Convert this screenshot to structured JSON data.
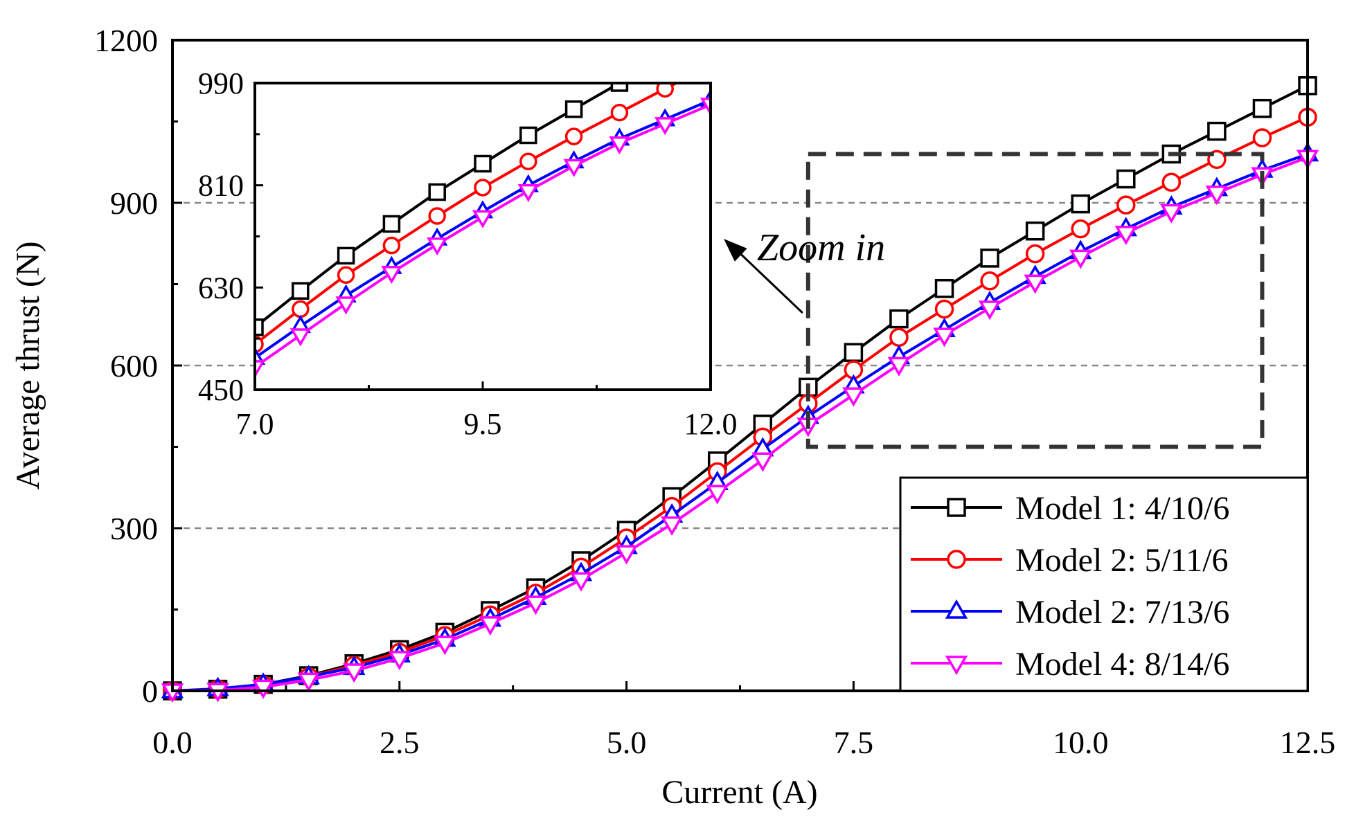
{
  "chart_data": {
    "type": "line",
    "xlabel": "Current (A)",
    "ylabel": "Average thrust (N)",
    "xlim": [
      0,
      12.5
    ],
    "ylim": [
      0,
      1200
    ],
    "xticks": [
      "0.0",
      "2.5",
      "5.0",
      "7.5",
      "10.0",
      "12.5"
    ],
    "yticks": [
      "0",
      "300",
      "600",
      "900",
      "1200"
    ],
    "x": [
      0,
      0.5,
      1,
      1.5,
      2,
      2.5,
      3,
      3.5,
      4,
      4.5,
      5,
      5.5,
      6,
      6.5,
      7,
      7.5,
      8,
      8.5,
      9,
      9.5,
      10,
      10.5,
      11,
      11.5,
      12,
      12.5
    ],
    "series": [
      {
        "name": "Model 1: 4/10/6",
        "color": "#000000",
        "marker": "square",
        "values": [
          0,
          3,
          12,
          28,
          50,
          76,
          108,
          148,
          190,
          240,
          296,
          358,
          424,
          492,
          560,
          624,
          686,
          742,
          798,
          848,
          898,
          944,
          990,
          1032,
          1074,
          1116
        ]
      },
      {
        "name": "Model 2: 5/11/6",
        "color": "#ff0000",
        "marker": "circle",
        "values": [
          0,
          3,
          11,
          26,
          47,
          71,
          102,
          140,
          180,
          228,
          282,
          340,
          404,
          468,
          530,
          592,
          652,
          704,
          756,
          806,
          852,
          896,
          938,
          980,
          1020,
          1058
        ]
      },
      {
        "name": "Model 2: 7/13/6",
        "color": "#0000ff",
        "marker": "triangle-up",
        "values": [
          0,
          4,
          12,
          26,
          43,
          66,
          95,
          132,
          172,
          216,
          266,
          324,
          384,
          446,
          506,
          562,
          616,
          666,
          716,
          764,
          810,
          852,
          892,
          926,
          960,
          990
        ]
      },
      {
        "name": "Model 4: 8/14/6",
        "color": "#ff00ff",
        "marker": "triangle-down",
        "values": [
          0,
          1,
          7,
          20,
          37,
          60,
          88,
          124,
          162,
          205,
          255,
          308,
          366,
          426,
          490,
          546,
          602,
          656,
          706,
          754,
          800,
          844,
          884,
          918,
          952,
          984
        ]
      }
    ],
    "grid": {
      "y_values": [
        300,
        600,
        900
      ],
      "style": "dashed"
    },
    "legend": {
      "placement": "bottom-right"
    },
    "zoom_box": {
      "x_range": [
        7,
        12
      ],
      "y_range": [
        450,
        990
      ],
      "label": "Zoom in"
    },
    "inset": {
      "xlim": [
        7,
        12
      ],
      "ylim": [
        450,
        990
      ],
      "xticks": [
        "7.0",
        "9.5",
        "12.0"
      ],
      "yticks": [
        "450",
        "630",
        "810",
        "990"
      ],
      "placement": "top-left"
    }
  }
}
